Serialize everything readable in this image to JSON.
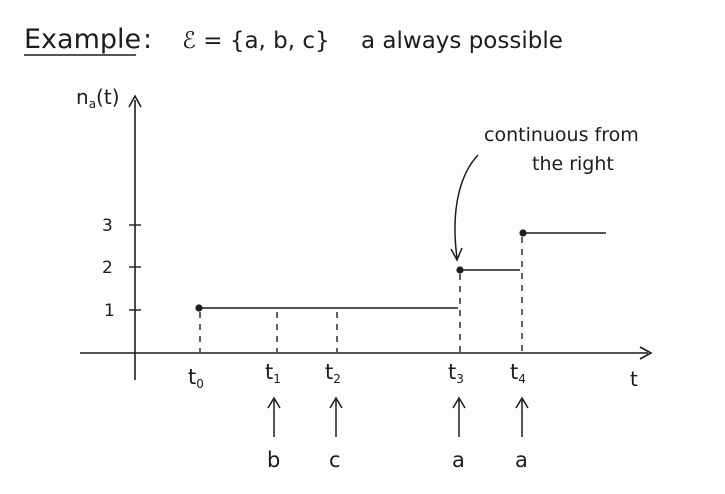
{
  "header": {
    "title": "Example",
    "colon": ":",
    "set_definition": "ℰ = {a, b, c}",
    "remark": "a always possible"
  },
  "axes": {
    "y_label": "n",
    "y_label_sub": "a",
    "y_label_arg": "(t)",
    "x_label": "t",
    "y_ticks": [
      "3",
      "2",
      "1"
    ]
  },
  "time_points": [
    {
      "base": "t",
      "sub": "0"
    },
    {
      "base": "t",
      "sub": "1"
    },
    {
      "base": "t",
      "sub": "2"
    },
    {
      "base": "t",
      "sub": "3"
    },
    {
      "base": "t",
      "sub": "4"
    }
  ],
  "events": [
    "b",
    "c",
    "a",
    "a"
  ],
  "annotation": {
    "line1": "continuous from",
    "line2": "the right"
  },
  "step_function": [
    {
      "from": "t0",
      "to": "t3",
      "value": 1
    },
    {
      "from": "t3",
      "to": "t4",
      "value": 2
    },
    {
      "from": "t4",
      "to": "end",
      "value": 3
    }
  ],
  "colors": {
    "ink": "#1d1d1d",
    "background": "#fdfdfc"
  }
}
